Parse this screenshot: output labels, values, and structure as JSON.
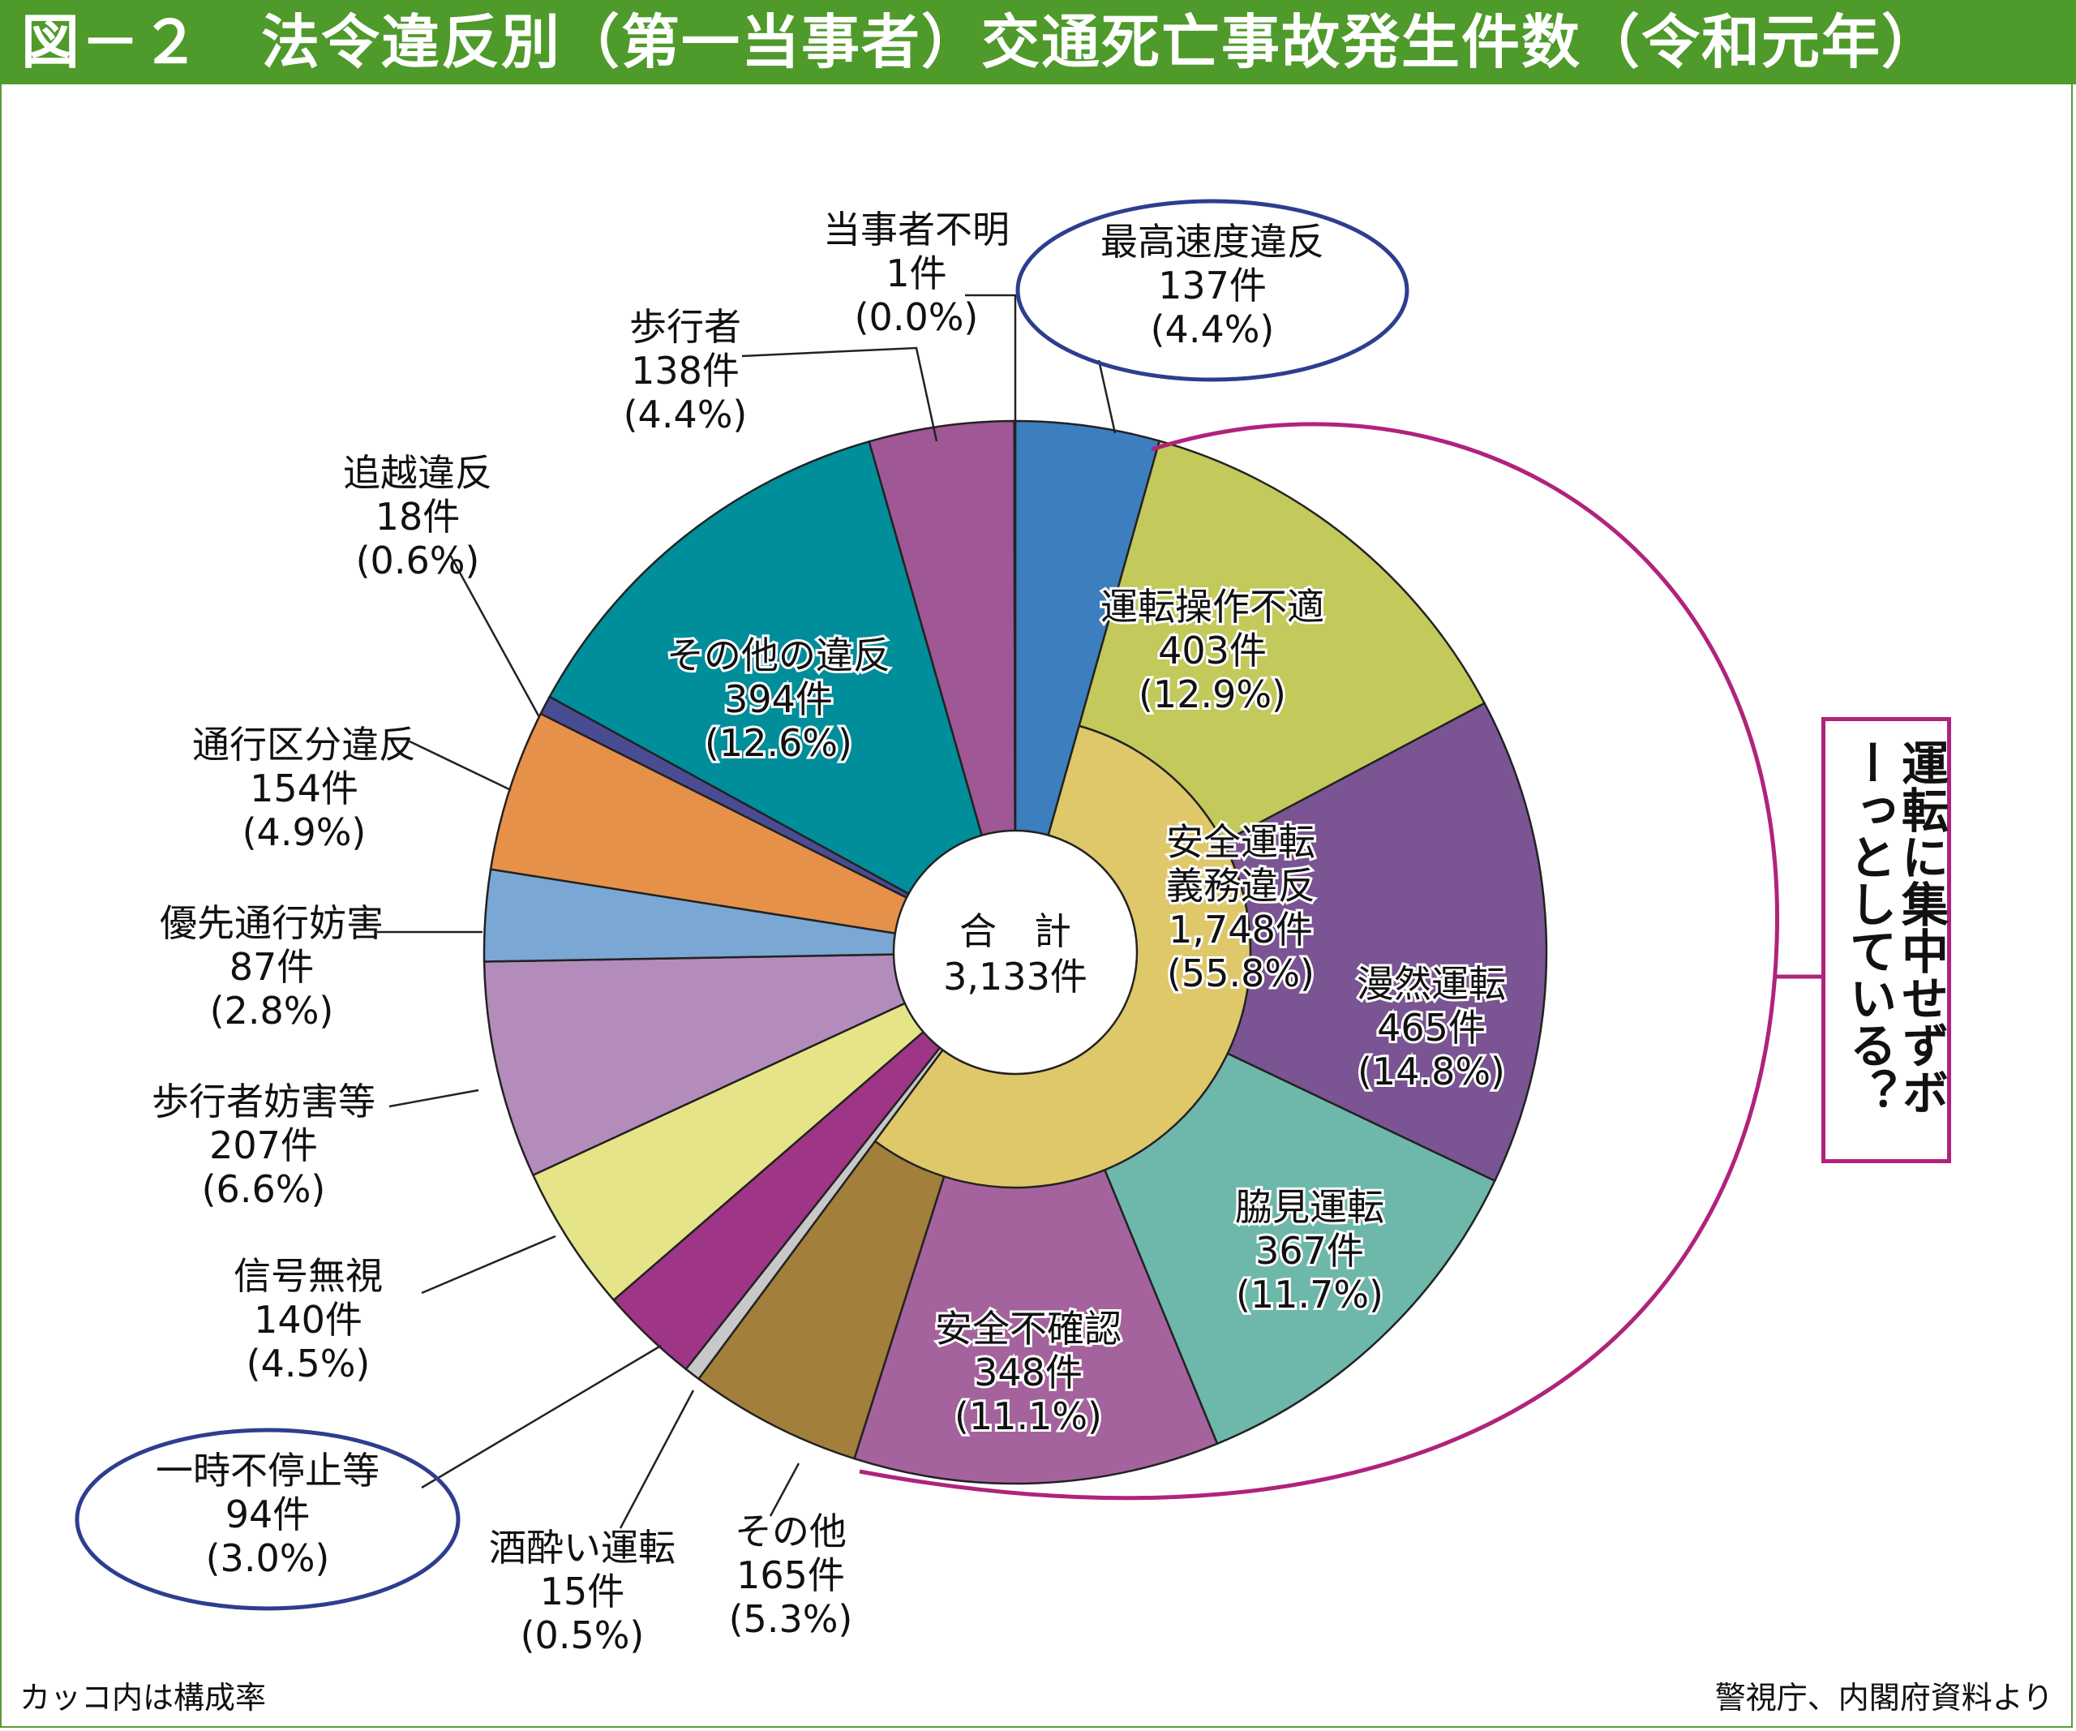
{
  "title": "図－２　法令違反別（第一当事者）交通死亡事故発生件数（令和元年）",
  "note": "カッコ内は構成率",
  "source": "警視庁、内閣府資料より",
  "callout": "運転に集中せずボーっとしている？",
  "colors": {
    "title_bg": "#4e9a2a",
    "ellipse": "#2f3d8f",
    "bracket": "#b0237c"
  },
  "chart_data": {
    "type": "pie",
    "center": {
      "label": "合　計",
      "total": "3,133件"
    },
    "slices": [
      {
        "name": "最高速度違反",
        "count": "137件",
        "pct": "(4.4%)",
        "value": 137,
        "color": "#3d7ebf"
      },
      {
        "name": "運転操作不適",
        "count": "403件",
        "pct": "(12.9%)",
        "value": 403,
        "color": "#c3c95a",
        "group": "safety"
      },
      {
        "name": "漫然運転",
        "count": "465件",
        "pct": "(14.8%)",
        "value": 465,
        "color": "#7b5493",
        "group": "safety"
      },
      {
        "name": "脇見運転",
        "count": "367件",
        "pct": "(11.7%)",
        "value": 367,
        "color": "#6db8aa",
        "group": "safety"
      },
      {
        "name": "安全不確認",
        "count": "348件",
        "pct": "(11.1%)",
        "value": 348,
        "color": "#a5639e",
        "group": "safety"
      },
      {
        "name": "その他",
        "count": "165件",
        "pct": "(5.3%)",
        "value": 165,
        "color": "#a27f3a",
        "group": "safety"
      },
      {
        "name": "酒酔い運転",
        "count": "15件",
        "pct": "(0.5%)",
        "value": 15,
        "color": "#c8c8c8"
      },
      {
        "name": "一時不停止等",
        "count": "94件",
        "pct": "(3.0%)",
        "value": 94,
        "color": "#9e3586"
      },
      {
        "name": "信号無視",
        "count": "140件",
        "pct": "(4.5%)",
        "value": 140,
        "color": "#e6e488"
      },
      {
        "name": "歩行者妨害等",
        "count": "207件",
        "pct": "(6.6%)",
        "value": 207,
        "color": "#b48cbb"
      },
      {
        "name": "優先通行妨害",
        "count": "87件",
        "pct": "(2.8%)",
        "value": 87,
        "color": "#7aa7d3"
      },
      {
        "name": "通行区分違反",
        "count": "154件",
        "pct": "(4.9%)",
        "value": 154,
        "color": "#e6914a"
      },
      {
        "name": "追越違反",
        "count": "18件",
        "pct": "(0.6%)",
        "value": 18,
        "color": "#4a4c93"
      },
      {
        "name": "その他の違反",
        "count": "394件",
        "pct": "(12.6%)",
        "value": 394,
        "color": "#008e9b"
      },
      {
        "name": "歩行者",
        "count": "138件",
        "pct": "(4.4%)",
        "value": 138,
        "color": "#a05796"
      },
      {
        "name": "当事者不明",
        "count": "1件",
        "pct": "(0.0%)",
        "value": 1,
        "color": "#cccccc"
      }
    ],
    "inner_group": {
      "name1": "安全運転",
      "name2": "義務違反",
      "count": "1,748件",
      "pct": "(55.8%)",
      "value": 1748,
      "color": "#dfc86a"
    }
  }
}
